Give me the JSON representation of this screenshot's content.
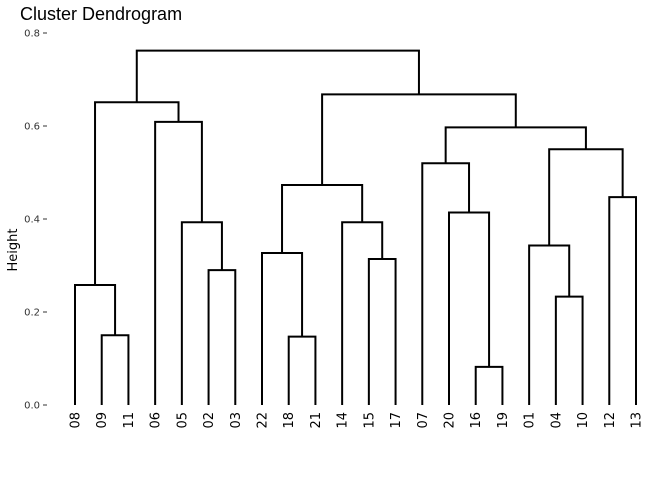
{
  "chart_data": {
    "type": "dendrogram",
    "title": "Cluster Dendrogram",
    "ylabel": "Height",
    "xlabel": "",
    "ylim": [
      0,
      0.8
    ],
    "yticks": [
      0.0,
      0.2,
      0.4,
      0.6,
      0.8
    ],
    "ytick_labels": [
      "0.0",
      "0.2",
      "0.4",
      "0.6",
      "0.8"
    ],
    "grid": false,
    "leaves": [
      "08",
      "09",
      "11",
      "06",
      "05",
      "02",
      "03",
      "22",
      "18",
      "21",
      "14",
      "15",
      "17",
      "07",
      "20",
      "16",
      "19",
      "01",
      "04",
      "10",
      "12",
      "13"
    ],
    "merges": [
      {
        "left": "09",
        "right": "11",
        "height": 0.15
      },
      {
        "left": "08",
        "right": "m1",
        "height": 0.258
      },
      {
        "left": "02",
        "right": "03",
        "height": 0.29
      },
      {
        "left": "05",
        "right": "m3",
        "height": 0.393
      },
      {
        "left": "06",
        "right": "m4",
        "height": 0.609
      },
      {
        "left": "m2",
        "right": "m5",
        "height": 0.651
      },
      {
        "left": "18",
        "right": "21",
        "height": 0.147
      },
      {
        "left": "22",
        "right": "m7",
        "height": 0.327
      },
      {
        "left": "15",
        "right": "17",
        "height": 0.314
      },
      {
        "left": "14",
        "right": "m9",
        "height": 0.393
      },
      {
        "left": "m8",
        "right": "m10",
        "height": 0.473
      },
      {
        "left": "16",
        "right": "19",
        "height": 0.082
      },
      {
        "left": "20",
        "right": "m12",
        "height": 0.414
      },
      {
        "left": "07",
        "right": "m13",
        "height": 0.52
      },
      {
        "left": "04",
        "right": "10",
        "height": 0.233
      },
      {
        "left": "01",
        "right": "m15",
        "height": 0.343
      },
      {
        "left": "12",
        "right": "13",
        "height": 0.447
      },
      {
        "left": "m16",
        "right": "m17",
        "height": 0.55
      },
      {
        "left": "m14",
        "right": "m18",
        "height": 0.597
      },
      {
        "left": "m11",
        "right": "m19",
        "height": 0.668
      },
      {
        "left": "m6",
        "right": "m20",
        "height": 0.762
      }
    ]
  }
}
